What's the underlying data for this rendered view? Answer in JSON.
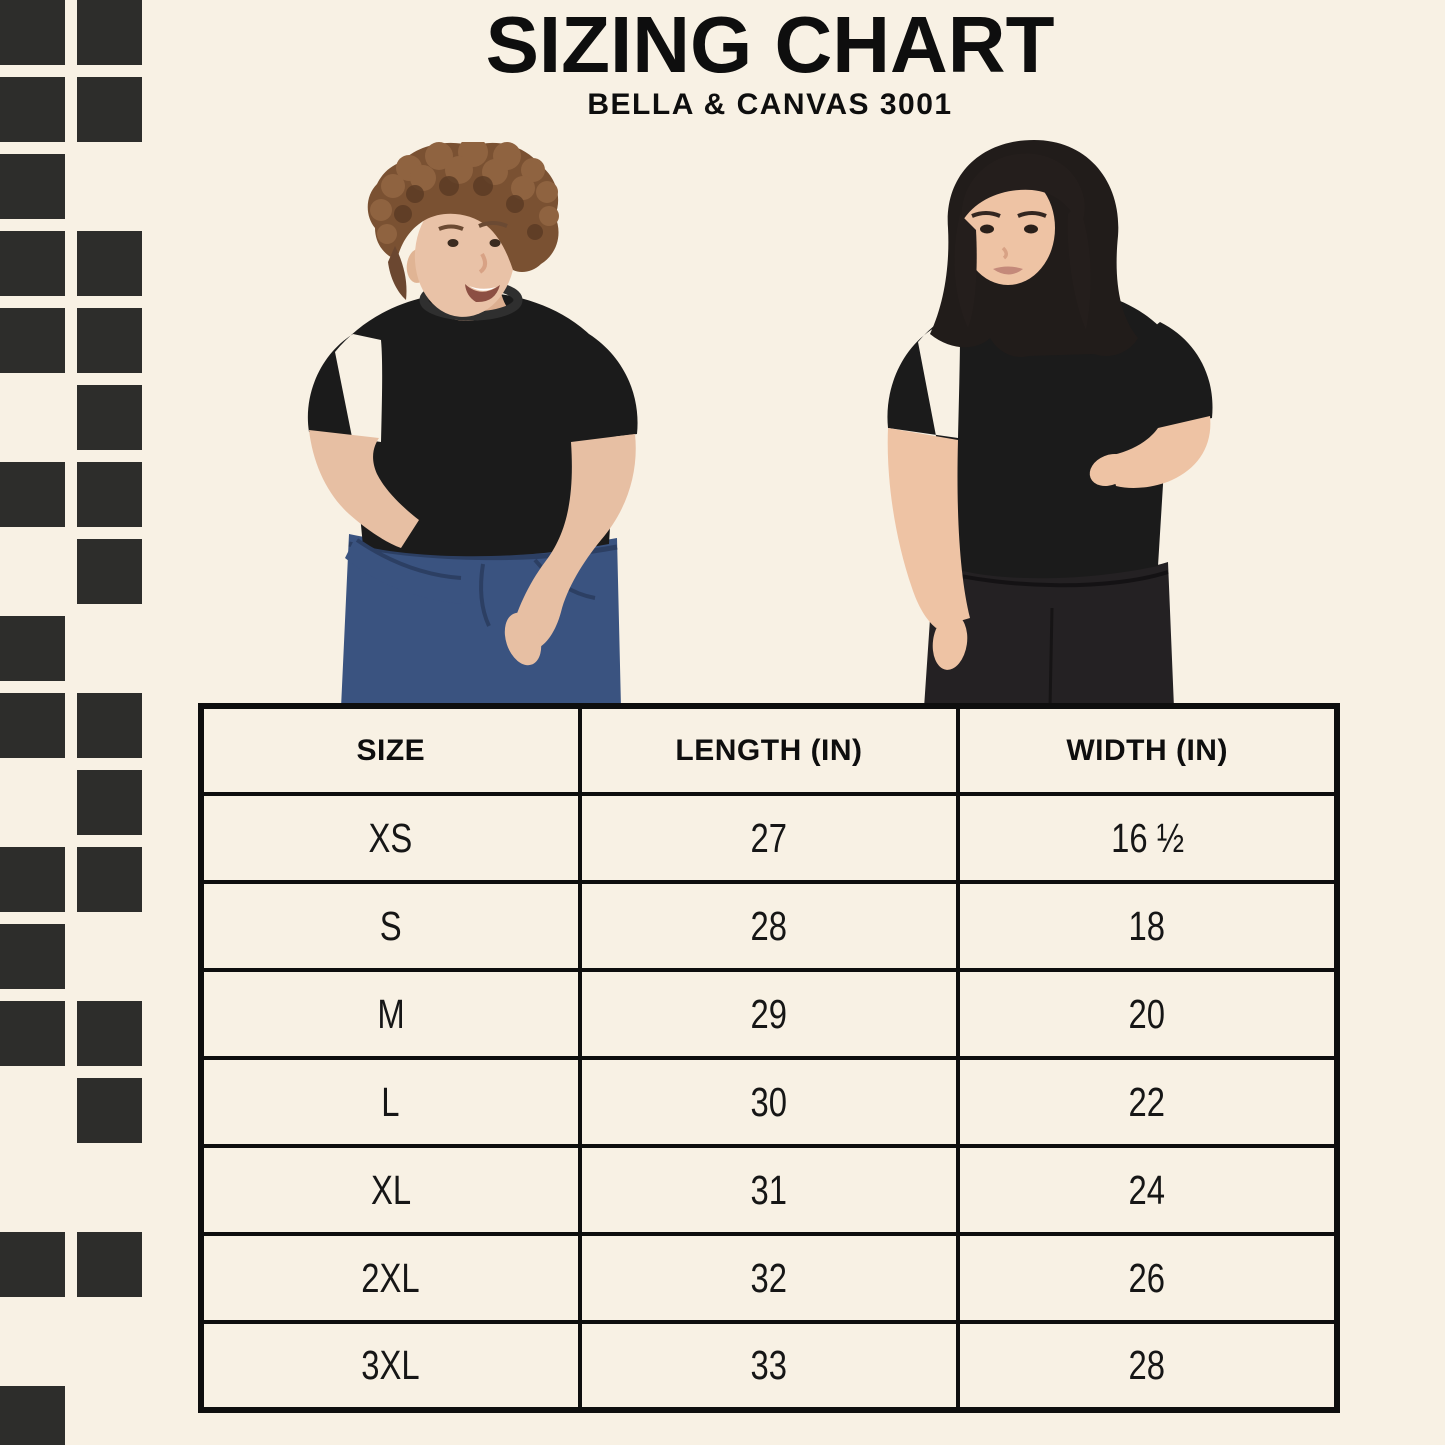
{
  "page": {
    "title": "SIZING CHART",
    "subtitle": "BELLA & CANVAS 3001",
    "colors": {
      "background": "#f8f1e4",
      "ink": "#0e0e0e",
      "square": "#2d2d2b",
      "tee": "#1b1b1b"
    }
  },
  "decor": {
    "pattern_rows": [
      "11",
      "11",
      "10",
      "11",
      "11",
      "01",
      "11",
      "01",
      "10",
      "11",
      "01",
      "11",
      "10",
      "11",
      "01",
      "00",
      "11",
      "00",
      "10"
    ]
  },
  "models": [
    {
      "alt": "man with curly brown hair wearing a black t-shirt and blue jeans, hand in pocket"
    },
    {
      "alt": "woman with black bob haircut wearing a black t-shirt and black jeans, hand on hip"
    }
  ],
  "size_table": {
    "columns": [
      "SIZE",
      "LENGTH (IN)",
      "WIDTH (IN)"
    ],
    "rows": [
      {
        "size": "XS",
        "length": "27",
        "width": "16 ½"
      },
      {
        "size": "S",
        "length": "28",
        "width": "18"
      },
      {
        "size": "M",
        "length": "29",
        "width": "20"
      },
      {
        "size": "L",
        "length": "30",
        "width": "22"
      },
      {
        "size": "XL",
        "length": "31",
        "width": "24"
      },
      {
        "size": "2XL",
        "length": "32",
        "width": "26"
      },
      {
        "size": "3XL",
        "length": "33",
        "width": "28"
      }
    ]
  }
}
